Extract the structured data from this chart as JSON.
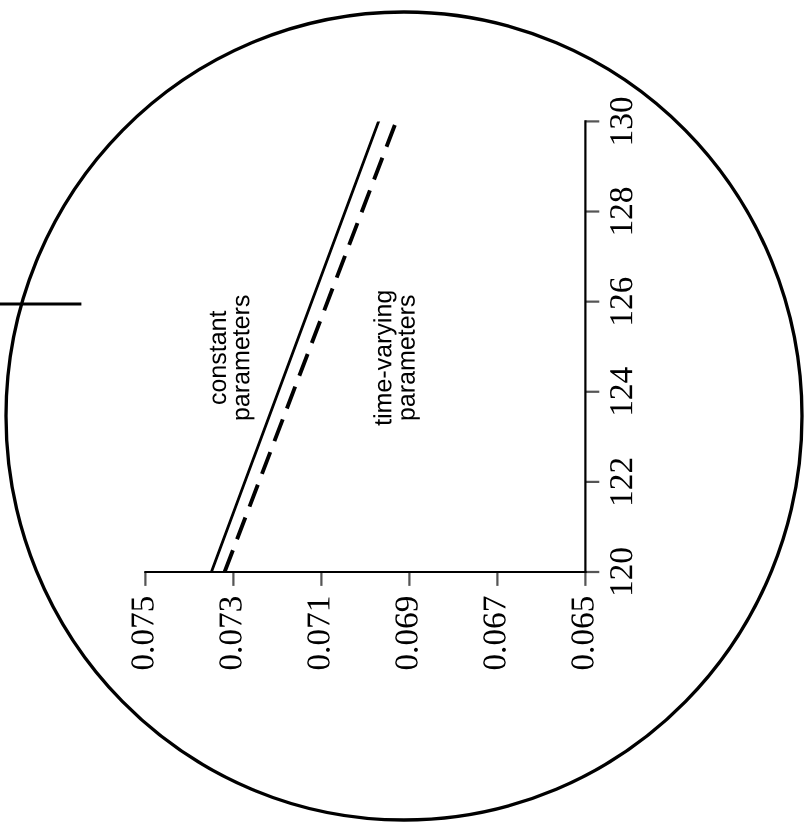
{
  "chart_data": {
    "type": "line",
    "series": [
      {
        "name": "constant parameters",
        "color": "#000000",
        "line_style": "solid",
        "x": [
          0.0735,
          0.0697
        ],
        "values": [
          120,
          130
        ]
      },
      {
        "name": "time-varying parameters",
        "color": "#000000",
        "line_style": "dashed",
        "x": [
          0.0732,
          0.0693
        ],
        "values": [
          120,
          130
        ]
      }
    ],
    "xlim": [
      0.075,
      0.065
    ],
    "xticks": [
      {
        "value": 0.075,
        "label": "0.075"
      },
      {
        "value": 0.073,
        "label": "0.073"
      },
      {
        "value": 0.071,
        "label": "0.071"
      },
      {
        "value": 0.069,
        "label": "0.069"
      },
      {
        "value": 0.067,
        "label": "0.067"
      },
      {
        "value": 0.065,
        "label": "0.065"
      }
    ],
    "ylim": [
      120,
      130
    ],
    "yticks": [
      120,
      122,
      124,
      126,
      128,
      130
    ],
    "grid": false,
    "legend": false,
    "marker": "none"
  }
}
